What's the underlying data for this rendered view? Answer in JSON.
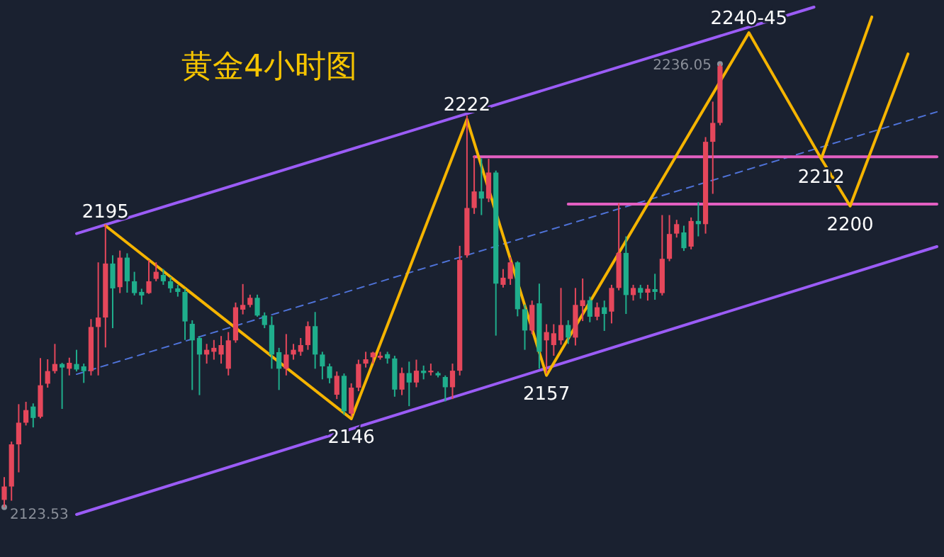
{
  "chart_data": {
    "type": "candlestick",
    "title": "黄金4小时图",
    "categories": [
      null,
      null,
      null,
      null,
      null,
      null,
      null,
      null,
      null,
      null,
      null,
      null,
      null,
      null,
      null,
      null,
      null,
      null,
      null,
      null,
      null,
      null,
      null,
      null,
      null,
      null,
      null,
      null,
      null,
      null,
      null,
      null,
      null,
      null,
      null,
      null,
      null,
      null,
      null,
      null,
      null,
      null,
      null,
      null,
      null,
      null,
      null,
      null,
      null,
      null,
      null,
      null,
      null,
      null,
      null,
      null,
      null,
      null,
      null,
      null,
      null,
      null,
      null,
      null,
      null,
      null,
      null,
      null,
      null,
      null,
      null,
      null,
      null,
      null,
      null,
      null,
      null,
      null,
      null,
      null,
      null,
      null,
      null,
      null,
      null,
      null,
      null,
      null,
      null,
      null,
      null,
      null,
      null,
      null,
      null,
      null,
      null,
      null,
      null,
      null,
      null,
      null,
      null,
      null,
      null,
      null,
      null,
      null,
      null,
      null,
      null,
      null,
      null,
      null,
      null,
      null,
      null,
      null,
      null,
      null,
      null,
      null,
      null,
      null,
      null,
      null,
      null,
      null,
      null,
      null
    ],
    "ohlc": [
      [
        2125.4,
        2131.2,
        2123.53,
        2128.8
      ],
      [
        2128.8,
        2140.2,
        2125.2,
        2139.5
      ],
      [
        2139.5,
        2149.7,
        2132.4,
        2145
      ],
      [
        2145,
        2150.3,
        2144.3,
        2148.2
      ],
      [
        2149.1,
        2149.9,
        2143.8,
        2146.2
      ],
      [
        2146.5,
        2161.4,
        2146.1,
        2154.5
      ],
      [
        2154.9,
        2161.1,
        2153.9,
        2158.1
      ],
      [
        2158.1,
        2165,
        2157.5,
        2159.9
      ],
      [
        2159.9,
        2160.2,
        2148.5,
        2159
      ],
      [
        2158.7,
        2161.5,
        2157,
        2160.2
      ],
      [
        2159.9,
        2163.5,
        2158,
        2158.5
      ],
      [
        2159.3,
        2160,
        2155.1,
        2158.1
      ],
      [
        2158.1,
        2171.3,
        2157,
        2169.3
      ],
      [
        2169.3,
        2185.7,
        2157,
        2171.7
      ],
      [
        2171.7,
        2195.3,
        2164.1,
        2185.4
      ],
      [
        2185.4,
        2187.5,
        2169,
        2179.1
      ],
      [
        2179.4,
        2188.7,
        2177.9,
        2186.9
      ],
      [
        2186.9,
        2188,
        2178,
        2180.9
      ],
      [
        2180.9,
        2183.3,
        2177.3,
        2177.9
      ],
      [
        2178.2,
        2179,
        2175,
        2177.3
      ],
      [
        2177.9,
        2186.3,
        2177.7,
        2180.9
      ],
      [
        2181.5,
        2185.7,
        2180.9,
        2183.3
      ],
      [
        2182.5,
        2184,
        2180,
        2180.9
      ],
      [
        2180.9,
        2182,
        2178,
        2179.1
      ],
      [
        2179.1,
        2180,
        2177,
        2178.2
      ],
      [
        2178.2,
        2179,
        2166,
        2170.7
      ],
      [
        2170.1,
        2171,
        2153.3,
        2165.9
      ],
      [
        2166.5,
        2167,
        2152,
        2162.3
      ],
      [
        2162.3,
        2165,
        2160,
        2163.5
      ],
      [
        2163,
        2166,
        2161,
        2164
      ],
      [
        2162.3,
        2167,
        2160,
        2164.7
      ],
      [
        2158.7,
        2168,
        2157,
        2165.9
      ],
      [
        2165.9,
        2175.5,
        2165.3,
        2174.3
      ],
      [
        2173.7,
        2180.2,
        2172.5,
        2174.9
      ],
      [
        2174.9,
        2177.5,
        2174.3,
        2176.7
      ],
      [
        2176.7,
        2177.5,
        2171.9,
        2172.2
      ],
      [
        2172.2,
        2173,
        2169,
        2169.8
      ],
      [
        2169.8,
        2172,
        2158.7,
        2162.3
      ],
      [
        2162.9,
        2164,
        2153.3,
        2158.7
      ],
      [
        2158.7,
        2167.5,
        2157,
        2162.3
      ],
      [
        2162.3,
        2165,
        2161,
        2163.5
      ],
      [
        2163,
        2166.5,
        2162,
        2164.7
      ],
      [
        2164.7,
        2170.7,
        2163.5,
        2169.5
      ],
      [
        2169.5,
        2173.1,
        2158.7,
        2162.3
      ],
      [
        2162.3,
        2163,
        2156,
        2159.3
      ],
      [
        2159.3,
        2160,
        2155,
        2156.3
      ],
      [
        2152.1,
        2158,
        2151,
        2156.9
      ],
      [
        2156.9,
        2157.5,
        2147,
        2147.9
      ],
      [
        2147.3,
        2155,
        2146.5,
        2153.9
      ],
      [
        2153.9,
        2161,
        2153,
        2159.9
      ],
      [
        2160,
        2163,
        2159,
        2161.1
      ],
      [
        2161.6,
        2163,
        2160,
        2162.8
      ],
      [
        2161.5,
        2163,
        2161,
        2162
      ],
      [
        2162.4,
        2163,
        2160,
        2161.3
      ],
      [
        2161.3,
        2162,
        2151.6,
        2153.4
      ],
      [
        2153.4,
        2159,
        2152,
        2157.6
      ],
      [
        2157.6,
        2160.5,
        2149.2,
        2155.2
      ],
      [
        2155.2,
        2161,
        2154,
        2158.2
      ],
      [
        2158.2,
        2159.5,
        2156,
        2157.6
      ],
      [
        2157.8,
        2160,
        2157,
        2158.2
      ],
      [
        2157.6,
        2158,
        2156.5,
        2157
      ],
      [
        2156.6,
        2157,
        2150.4,
        2154
      ],
      [
        2154,
        2160,
        2151,
        2158.2
      ],
      [
        2158.2,
        2189.9,
        2157,
        2186.3
      ],
      [
        2187.5,
        2223,
        2186.9,
        2199.5
      ],
      [
        2199.5,
        2212.7,
        2198,
        2203.7
      ],
      [
        2203.7,
        2212.1,
        2197.7,
        2201.9
      ],
      [
        2201.9,
        2212,
        2201,
        2208.5
      ],
      [
        2208.5,
        2209,
        2167.1,
        2180.3
      ],
      [
        2180,
        2184,
        2179.3,
        2181.8
      ],
      [
        2181.5,
        2187,
        2180,
        2185.7
      ],
      [
        2185.7,
        2186,
        2172,
        2173.8
      ],
      [
        2173.8,
        2175,
        2163.5,
        2168.4
      ],
      [
        2168.4,
        2176,
        2167.5,
        2174.9
      ],
      [
        2175.3,
        2180.3,
        2158.7,
        2163
      ],
      [
        2165.9,
        2170,
        2157.5,
        2168
      ],
      [
        2164.7,
        2170,
        2162,
        2167.7
      ],
      [
        2165.9,
        2179.2,
        2164.8,
        2169.8
      ],
      [
        2169.8,
        2171,
        2165,
        2166.6
      ],
      [
        2166.6,
        2179.2,
        2164.6,
        2174.9
      ],
      [
        2174.6,
        2181.6,
        2170.8,
        2176.1
      ],
      [
        2176.1,
        2177,
        2170.5,
        2171.9
      ],
      [
        2171.9,
        2175.5,
        2171,
        2174.3
      ],
      [
        2174.3,
        2176,
        2168.3,
        2172.6
      ],
      [
        2173.2,
        2180,
        2170.2,
        2179.2
      ],
      [
        2179.2,
        2200.7,
        2178.6,
        2188.1
      ],
      [
        2188.1,
        2192.3,
        2172.6,
        2177.4
      ],
      [
        2177.4,
        2180,
        2176,
        2179.2
      ],
      [
        2179.2,
        2180,
        2176.5,
        2178
      ],
      [
        2178,
        2180,
        2176,
        2179
      ],
      [
        2178.9,
        2182.8,
        2176.2,
        2178.2
      ],
      [
        2177.9,
        2197.7,
        2177.3,
        2186.6
      ],
      [
        2186.6,
        2197.7,
        2186,
        2192.9
      ],
      [
        2193,
        2196.5,
        2192,
        2195.4
      ],
      [
        2193.3,
        2195,
        2188.6,
        2189.3
      ],
      [
        2189.7,
        2197.1,
        2189,
        2196.2
      ],
      [
        2196.2,
        2201,
        2192.3,
        2195.4
      ],
      [
        2195.4,
        2217.5,
        2193,
        2216.3
      ],
      [
        2216.3,
        2226.5,
        2203.1,
        2221.1
      ],
      [
        2221.1,
        2236.05,
        2220.5,
        2235.5
      ],
      null,
      null,
      null,
      null,
      null,
      null,
      null,
      null,
      null,
      null,
      null,
      null,
      null,
      null,
      null,
      null,
      null,
      null,
      null,
      null,
      null,
      null,
      null,
      null,
      null,
      null,
      null,
      null,
      null,
      null
    ],
    "series": [
      {
        "type": "line",
        "color": "#9b5cf6",
        "line_style": "solid",
        "values": [
          null,
          null,
          null,
          null,
          null,
          null,
          null,
          null,
          null,
          null,
          2193,
          null,
          null,
          null,
          null,
          null,
          null,
          null,
          null,
          null,
          null,
          null,
          null,
          null,
          null,
          null,
          null,
          null,
          null,
          null,
          null,
          null,
          null,
          null,
          null,
          null,
          null,
          null,
          null,
          null,
          null,
          null,
          null,
          null,
          null,
          null,
          null,
          null,
          null,
          null,
          null,
          null,
          null,
          null,
          null,
          null,
          null,
          null,
          null,
          null,
          null,
          null,
          null,
          null,
          null,
          null,
          null,
          null,
          null,
          null,
          null,
          null,
          null,
          null,
          null,
          null,
          null,
          null,
          null,
          null,
          null,
          null,
          null,
          null,
          null,
          null,
          null,
          null,
          null,
          null,
          null,
          null,
          null,
          null,
          null,
          null,
          null,
          null,
          null,
          null,
          null,
          null,
          null,
          null,
          null,
          null,
          null,
          null,
          null,
          null,
          null,
          null,
          2250.5,
          null,
          null,
          null,
          null,
          null,
          null,
          null,
          null,
          null,
          null,
          null,
          null,
          null,
          null,
          null,
          null,
          null
        ]
      },
      {
        "type": "line",
        "color": "#9b5cf6",
        "line_style": "solid",
        "values": [
          null,
          null,
          null,
          null,
          null,
          null,
          null,
          null,
          null,
          null,
          2121.7,
          null,
          null,
          null,
          null,
          null,
          null,
          null,
          null,
          null,
          null,
          null,
          null,
          null,
          null,
          null,
          null,
          null,
          null,
          null,
          null,
          null,
          null,
          null,
          null,
          null,
          null,
          null,
          null,
          null,
          null,
          null,
          null,
          null,
          null,
          null,
          null,
          null,
          null,
          null,
          null,
          null,
          null,
          null,
          null,
          null,
          null,
          null,
          null,
          null,
          null,
          null,
          null,
          null,
          null,
          null,
          null,
          null,
          null,
          null,
          null,
          null,
          null,
          null,
          null,
          null,
          null,
          null,
          null,
          null,
          null,
          null,
          null,
          null,
          null,
          null,
          null,
          null,
          null,
          null,
          null,
          null,
          null,
          null,
          null,
          null,
          null,
          null,
          null,
          null,
          null,
          null,
          null,
          null,
          null,
          null,
          null,
          null,
          null,
          null,
          null,
          null,
          null,
          null,
          null,
          null,
          null,
          null,
          null,
          null,
          null,
          null,
          null,
          null,
          null,
          null,
          null,
          null,
          null,
          2189.7
        ]
      },
      {
        "type": "line",
        "color": "#4f73d9",
        "line_style": "dashed",
        "values": [
          null,
          null,
          null,
          null,
          null,
          null,
          null,
          null,
          null,
          null,
          2157.3,
          null,
          null,
          null,
          null,
          null,
          null,
          null,
          null,
          null,
          null,
          null,
          null,
          null,
          null,
          null,
          null,
          null,
          null,
          null,
          null,
          null,
          null,
          null,
          null,
          null,
          null,
          null,
          null,
          null,
          null,
          null,
          null,
          null,
          null,
          null,
          null,
          null,
          null,
          null,
          null,
          null,
          null,
          null,
          null,
          null,
          null,
          null,
          null,
          null,
          null,
          null,
          null,
          null,
          null,
          null,
          null,
          null,
          null,
          null,
          null,
          null,
          null,
          null,
          null,
          null,
          null,
          null,
          null,
          null,
          null,
          null,
          null,
          null,
          null,
          null,
          null,
          null,
          null,
          null,
          null,
          null,
          null,
          null,
          null,
          null,
          null,
          null,
          null,
          null,
          null,
          null,
          null,
          null,
          null,
          null,
          null,
          null,
          null,
          null,
          null,
          null,
          null,
          null,
          null,
          null,
          null,
          null,
          null,
          null,
          null,
          null,
          null,
          null,
          null,
          null,
          null,
          null,
          null,
          2223.9
        ]
      },
      {
        "type": "line",
        "color": "#e35fc1",
        "line_style": "solid",
        "values": [
          null,
          null,
          null,
          null,
          null,
          null,
          null,
          null,
          null,
          null,
          null,
          null,
          null,
          null,
          null,
          null,
          null,
          null,
          null,
          null,
          null,
          null,
          null,
          null,
          null,
          null,
          null,
          null,
          null,
          null,
          null,
          null,
          null,
          null,
          null,
          null,
          null,
          null,
          null,
          null,
          null,
          null,
          null,
          null,
          null,
          null,
          null,
          null,
          null,
          null,
          null,
          null,
          null,
          null,
          null,
          null,
          null,
          null,
          null,
          null,
          null,
          null,
          null,
          null,
          null,
          2212.5,
          null,
          null,
          null,
          null,
          null,
          null,
          null,
          null,
          null,
          null,
          null,
          null,
          null,
          null,
          null,
          null,
          null,
          null,
          null,
          null,
          null,
          null,
          null,
          null,
          null,
          null,
          null,
          null,
          null,
          null,
          null,
          null,
          null,
          null,
          null,
          null,
          null,
          null,
          null,
          null,
          null,
          null,
          null,
          null,
          null,
          null,
          null,
          null,
          null,
          null,
          null,
          null,
          null,
          null,
          null,
          null,
          null,
          null,
          null,
          null,
          null,
          null,
          null,
          2212.5
        ]
      },
      {
        "type": "line",
        "color": "#e35fc1",
        "line_style": "solid",
        "values": [
          null,
          null,
          null,
          null,
          null,
          null,
          null,
          null,
          null,
          null,
          null,
          null,
          null,
          null,
          null,
          null,
          null,
          null,
          null,
          null,
          null,
          null,
          null,
          null,
          null,
          null,
          null,
          null,
          null,
          null,
          null,
          null,
          null,
          null,
          null,
          null,
          null,
          null,
          null,
          null,
          null,
          null,
          null,
          null,
          null,
          null,
          null,
          null,
          null,
          null,
          null,
          null,
          null,
          null,
          null,
          null,
          null,
          null,
          null,
          null,
          null,
          null,
          null,
          null,
          null,
          null,
          null,
          null,
          null,
          null,
          null,
          null,
          null,
          null,
          null,
          null,
          null,
          null,
          2200.5,
          null,
          null,
          null,
          null,
          null,
          null,
          null,
          null,
          null,
          null,
          null,
          null,
          null,
          null,
          null,
          null,
          null,
          null,
          null,
          null,
          null,
          null,
          null,
          null,
          null,
          null,
          null,
          null,
          null,
          null,
          null,
          null,
          null,
          null,
          null,
          null,
          null,
          null,
          null,
          null,
          null,
          null,
          null,
          null,
          null,
          null,
          null,
          null,
          null,
          null,
          2200.5
        ]
      },
      {
        "type": "line",
        "color": "#f5b400",
        "line_style": "solid",
        "values": [
          null,
          null,
          null,
          null,
          null,
          null,
          null,
          null,
          null,
          null,
          null,
          null,
          null,
          null,
          2195,
          null,
          null,
          null,
          null,
          null,
          null,
          null,
          null,
          null,
          null,
          null,
          null,
          null,
          null,
          null,
          null,
          null,
          null,
          null,
          null,
          null,
          null,
          null,
          null,
          null,
          null,
          null,
          null,
          null,
          null,
          null,
          null,
          null,
          2146,
          null,
          null,
          null,
          null,
          null,
          null,
          null,
          null,
          null,
          null,
          null,
          null,
          null,
          null,
          null,
          2222,
          null,
          null,
          null,
          null,
          null,
          null,
          null,
          null,
          null,
          null,
          2157,
          null,
          null,
          null,
          null,
          null,
          null,
          null,
          null,
          null,
          null,
          null,
          null,
          null,
          null,
          null,
          null,
          null,
          null,
          null,
          null,
          null,
          null,
          null,
          null,
          null,
          null,
          null,
          2244,
          null,
          null,
          null,
          null,
          null,
          null,
          null,
          null,
          null,
          2212,
          null,
          null,
          null,
          2200,
          null,
          null,
          null,
          null,
          null,
          null,
          null,
          2238.6,
          null,
          null,
          null,
          null
        ],
        "value_labels": [
          null,
          null,
          null,
          null,
          null,
          null,
          null,
          null,
          null,
          null,
          null,
          null,
          null,
          null,
          "2195",
          null,
          null,
          null,
          null,
          null,
          null,
          null,
          null,
          null,
          null,
          null,
          null,
          null,
          null,
          null,
          null,
          null,
          null,
          null,
          null,
          null,
          null,
          null,
          null,
          null,
          null,
          null,
          null,
          null,
          null,
          null,
          null,
          null,
          "2146",
          null,
          null,
          null,
          null,
          null,
          null,
          null,
          null,
          null,
          null,
          null,
          null,
          null,
          null,
          null,
          "2222",
          null,
          null,
          null,
          null,
          null,
          null,
          null,
          null,
          null,
          null,
          "2157",
          null,
          null,
          null,
          null,
          null,
          null,
          null,
          null,
          null,
          null,
          null,
          null,
          null,
          null,
          null,
          null,
          null,
          null,
          null,
          null,
          null,
          null,
          null,
          null,
          null,
          null,
          null,
          "2240-45",
          null,
          null,
          null,
          null,
          null,
          null,
          null,
          null,
          null,
          "2212",
          null,
          null,
          null,
          "2200",
          null,
          null,
          null,
          null,
          null,
          null,
          null,
          null,
          null,
          null,
          null,
          null
        ]
      },
      {
        "type": "line",
        "color": "#f5b400",
        "line_style": "solid",
        "values": [
          null,
          null,
          null,
          null,
          null,
          null,
          null,
          null,
          null,
          null,
          null,
          null,
          null,
          null,
          null,
          null,
          null,
          null,
          null,
          null,
          null,
          null,
          null,
          null,
          null,
          null,
          null,
          null,
          null,
          null,
          null,
          null,
          null,
          null,
          null,
          null,
          null,
          null,
          null,
          null,
          null,
          null,
          null,
          null,
          null,
          null,
          null,
          null,
          null,
          null,
          null,
          null,
          null,
          null,
          null,
          null,
          null,
          null,
          null,
          null,
          null,
          null,
          null,
          null,
          null,
          null,
          null,
          null,
          null,
          null,
          null,
          null,
          null,
          null,
          null,
          null,
          null,
          null,
          null,
          null,
          null,
          null,
          null,
          null,
          null,
          null,
          null,
          null,
          null,
          null,
          null,
          null,
          null,
          null,
          null,
          null,
          null,
          null,
          null,
          null,
          null,
          null,
          null,
          null,
          null,
          null,
          null,
          null,
          null,
          null,
          null,
          null,
          null,
          2212,
          null,
          null,
          null,
          null,
          null,
          null,
          2248,
          null,
          null,
          null,
          null,
          null,
          null,
          null,
          null,
          null
        ]
      },
      {
        "type": "scatter",
        "marker": "circle",
        "color": "#8a8f99",
        "values": [
          2123.53,
          null,
          null,
          null,
          null,
          null,
          null,
          null,
          null,
          null,
          null,
          null,
          null,
          null,
          null,
          null,
          null,
          null,
          null,
          null,
          null,
          null,
          null,
          null,
          null,
          null,
          null,
          null,
          null,
          null,
          null,
          null,
          null,
          null,
          null,
          null,
          null,
          null,
          null,
          null,
          null,
          null,
          null,
          null,
          null,
          null,
          null,
          null,
          null,
          null,
          null,
          null,
          null,
          null,
          null,
          null,
          null,
          null,
          null,
          null,
          null,
          null,
          null,
          null,
          null,
          null,
          null,
          null,
          null,
          null,
          null,
          null,
          null,
          null,
          null,
          null,
          null,
          null,
          null,
          null,
          null,
          null,
          null,
          null,
          null,
          null,
          null,
          null,
          null,
          null,
          null,
          null,
          null,
          null,
          null,
          null,
          null,
          null,
          null,
          2236.05,
          null,
          null,
          null,
          null,
          null,
          null,
          null,
          null,
          null,
          null,
          null,
          null,
          null,
          null,
          null,
          null,
          null,
          null,
          null,
          null,
          null,
          null,
          null,
          null,
          null,
          null,
          null,
          null,
          null,
          null
        ],
        "value_labels": [
          "2123.53",
          null,
          null,
          null,
          null,
          null,
          null,
          null,
          null,
          null,
          null,
          null,
          null,
          null,
          null,
          null,
          null,
          null,
          null,
          null,
          null,
          null,
          null,
          null,
          null,
          null,
          null,
          null,
          null,
          null,
          null,
          null,
          null,
          null,
          null,
          null,
          null,
          null,
          null,
          null,
          null,
          null,
          null,
          null,
          null,
          null,
          null,
          null,
          null,
          null,
          null,
          null,
          null,
          null,
          null,
          null,
          null,
          null,
          null,
          null,
          null,
          null,
          null,
          null,
          null,
          null,
          null,
          null,
          null,
          null,
          null,
          null,
          null,
          null,
          null,
          null,
          null,
          null,
          null,
          null,
          null,
          null,
          null,
          null,
          null,
          null,
          null,
          null,
          null,
          null,
          null,
          null,
          null,
          null,
          null,
          null,
          null,
          null,
          null,
          "2236.05",
          null,
          null,
          null,
          null,
          null,
          null,
          null,
          null,
          null,
          null,
          null,
          null,
          null,
          null,
          null,
          null,
          null,
          null,
          null,
          null,
          null,
          null,
          null,
          null,
          null,
          null,
          null,
          null,
          null,
          null
        ]
      }
    ]
  }
}
